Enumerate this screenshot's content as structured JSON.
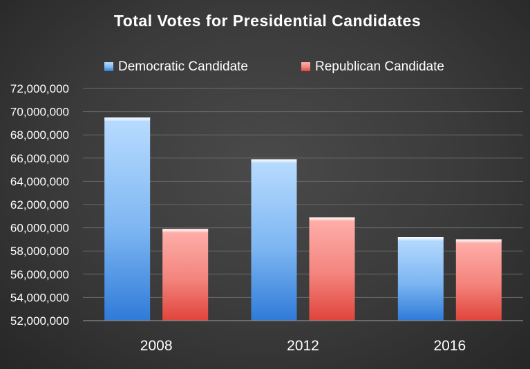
{
  "chart_data": {
    "type": "bar",
    "title": "Total Votes for Presidential Candidates",
    "categories": [
      "2008",
      "2012",
      "2016"
    ],
    "series": [
      {
        "name": "Democratic Candidate",
        "values": [
          69500000,
          65900000,
          59200000
        ],
        "color": "#5b9bd5"
      },
      {
        "name": "Republican Candidate",
        "values": [
          59900000,
          60900000,
          59000000
        ],
        "color": "#e8625a"
      }
    ],
    "ylim": [
      52000000,
      72000000
    ],
    "yticks": [
      52000000,
      54000000,
      56000000,
      58000000,
      60000000,
      62000000,
      64000000,
      66000000,
      68000000,
      70000000,
      72000000
    ],
    "ytick_labels": [
      "52,000,000",
      "54,000,000",
      "56,000,000",
      "58,000,000",
      "60,000,000",
      "62,000,000",
      "64,000,000",
      "66,000,000",
      "68,000,000",
      "70,000,000",
      "72,000,000"
    ],
    "grid": true,
    "legend_position": "top",
    "xlabel": "",
    "ylabel": ""
  }
}
